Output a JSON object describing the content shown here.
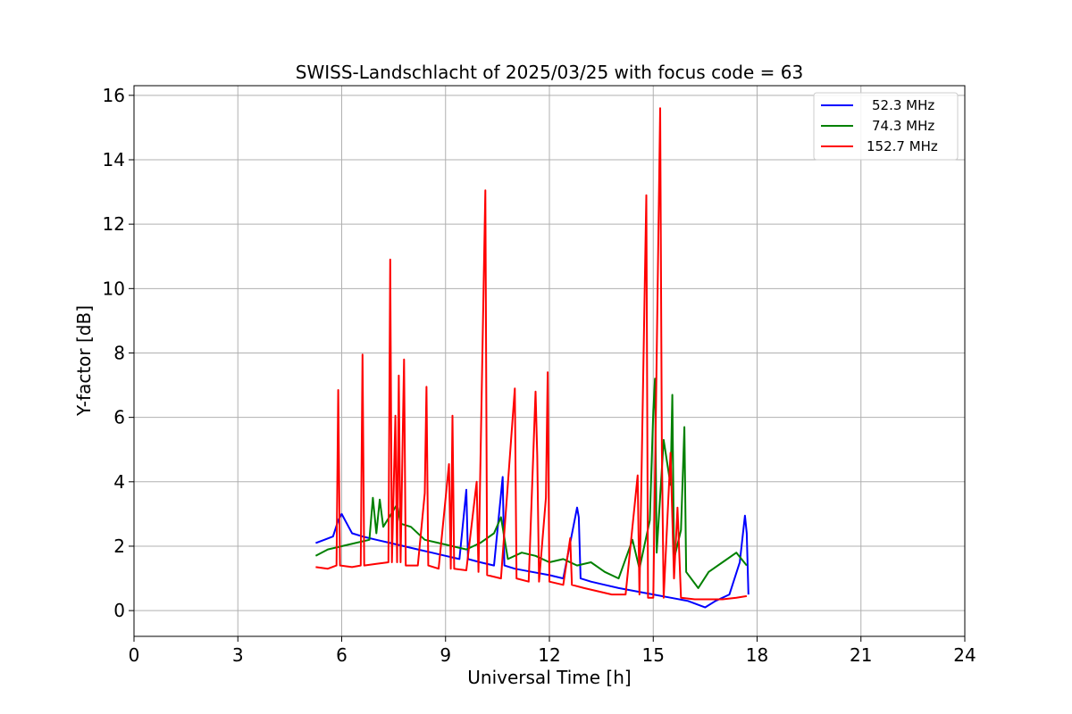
{
  "chart_data": {
    "type": "line",
    "title": "SWISS-Landschlacht of 2025/03/25 with focus code = 63",
    "xlabel": "Universal Time [h]",
    "ylabel": "Y-factor [dB]",
    "xlim": [
      0,
      24
    ],
    "ylim": [
      -0.8,
      16.3
    ],
    "xticks": [
      0,
      3,
      6,
      9,
      12,
      15,
      18,
      21,
      24
    ],
    "yticks": [
      0,
      2,
      4,
      6,
      8,
      10,
      12,
      14,
      16
    ],
    "grid": true,
    "legend_position": "top-right",
    "series": [
      {
        "name": "52.3 MHz",
        "color": "#0000ff",
        "points": [
          [
            5.25,
            2.1
          ],
          [
            5.5,
            2.2
          ],
          [
            5.75,
            2.3
          ],
          [
            5.9,
            2.8
          ],
          [
            6.0,
            3.0
          ],
          [
            6.15,
            2.7
          ],
          [
            6.3,
            2.4
          ],
          [
            6.6,
            2.3
          ],
          [
            7.0,
            2.2
          ],
          [
            7.4,
            2.1
          ],
          [
            7.8,
            2.0
          ],
          [
            8.2,
            1.9
          ],
          [
            8.6,
            1.8
          ],
          [
            9.0,
            1.7
          ],
          [
            9.4,
            1.6
          ],
          [
            9.6,
            3.75
          ],
          [
            9.65,
            1.6
          ],
          [
            10.0,
            1.5
          ],
          [
            10.4,
            1.4
          ],
          [
            10.65,
            4.15
          ],
          [
            10.7,
            1.4
          ],
          [
            11.0,
            1.3
          ],
          [
            11.5,
            1.2
          ],
          [
            12.0,
            1.1
          ],
          [
            12.4,
            1.0
          ],
          [
            12.8,
            3.2
          ],
          [
            12.85,
            2.9
          ],
          [
            12.9,
            1.0
          ],
          [
            13.2,
            0.9
          ],
          [
            13.6,
            0.8
          ],
          [
            14.0,
            0.7
          ],
          [
            14.5,
            0.6
          ],
          [
            15.0,
            0.5
          ],
          [
            15.5,
            0.4
          ],
          [
            16.0,
            0.3
          ],
          [
            16.5,
            0.1
          ],
          [
            16.8,
            0.3
          ],
          [
            17.2,
            0.5
          ],
          [
            17.5,
            1.5
          ],
          [
            17.65,
            2.95
          ],
          [
            17.7,
            2.4
          ],
          [
            17.75,
            0.5
          ]
        ]
      },
      {
        "name": "74.3 MHz",
        "color": "#008000",
        "points": [
          [
            5.25,
            1.7
          ],
          [
            5.6,
            1.9
          ],
          [
            6.0,
            2.0
          ],
          [
            6.4,
            2.1
          ],
          [
            6.8,
            2.2
          ],
          [
            6.9,
            3.5
          ],
          [
            7.0,
            2.4
          ],
          [
            7.1,
            3.45
          ],
          [
            7.2,
            2.6
          ],
          [
            7.6,
            3.3
          ],
          [
            7.7,
            2.7
          ],
          [
            8.0,
            2.6
          ],
          [
            8.4,
            2.2
          ],
          [
            8.8,
            2.1
          ],
          [
            9.2,
            2.0
          ],
          [
            9.6,
            1.9
          ],
          [
            10.0,
            2.1
          ],
          [
            10.4,
            2.4
          ],
          [
            10.6,
            2.9
          ],
          [
            10.8,
            1.6
          ],
          [
            11.2,
            1.8
          ],
          [
            11.6,
            1.7
          ],
          [
            12.0,
            1.5
          ],
          [
            12.4,
            1.6
          ],
          [
            12.8,
            1.4
          ],
          [
            13.2,
            1.5
          ],
          [
            13.6,
            1.2
          ],
          [
            14.0,
            1.0
          ],
          [
            14.4,
            2.2
          ],
          [
            14.6,
            1.3
          ],
          [
            14.9,
            2.8
          ],
          [
            15.0,
            6.2
          ],
          [
            15.05,
            7.2
          ],
          [
            15.1,
            1.8
          ],
          [
            15.3,
            5.3
          ],
          [
            15.5,
            3.9
          ],
          [
            15.55,
            6.7
          ],
          [
            15.6,
            1.6
          ],
          [
            15.8,
            2.5
          ],
          [
            15.9,
            5.7
          ],
          [
            15.95,
            1.2
          ],
          [
            16.3,
            0.7
          ],
          [
            16.6,
            1.2
          ],
          [
            17.0,
            1.5
          ],
          [
            17.4,
            1.8
          ],
          [
            17.7,
            1.4
          ]
        ]
      },
      {
        "name": "152.7 MHz",
        "color": "#ff0000",
        "points": [
          [
            5.25,
            1.35
          ],
          [
            5.6,
            1.3
          ],
          [
            5.85,
            1.4
          ],
          [
            5.9,
            6.85
          ],
          [
            5.95,
            1.4
          ],
          [
            6.3,
            1.35
          ],
          [
            6.55,
            1.4
          ],
          [
            6.6,
            7.95
          ],
          [
            6.65,
            1.4
          ],
          [
            7.0,
            1.45
          ],
          [
            7.35,
            1.5
          ],
          [
            7.4,
            10.9
          ],
          [
            7.45,
            1.5
          ],
          [
            7.55,
            6.05
          ],
          [
            7.6,
            1.5
          ],
          [
            7.65,
            7.3
          ],
          [
            7.7,
            1.5
          ],
          [
            7.8,
            7.8
          ],
          [
            7.85,
            1.4
          ],
          [
            8.2,
            1.4
          ],
          [
            8.4,
            3.65
          ],
          [
            8.45,
            6.95
          ],
          [
            8.5,
            1.4
          ],
          [
            8.8,
            1.3
          ],
          [
            9.1,
            4.55
          ],
          [
            9.15,
            1.3
          ],
          [
            9.2,
            6.05
          ],
          [
            9.25,
            1.3
          ],
          [
            9.6,
            1.25
          ],
          [
            9.9,
            4.0
          ],
          [
            9.95,
            1.2
          ],
          [
            10.15,
            13.05
          ],
          [
            10.2,
            1.1
          ],
          [
            10.6,
            1.0
          ],
          [
            11.0,
            6.9
          ],
          [
            11.05,
            1.0
          ],
          [
            11.4,
            0.9
          ],
          [
            11.6,
            6.8
          ],
          [
            11.65,
            4.8
          ],
          [
            11.7,
            0.9
          ],
          [
            11.9,
            3.5
          ],
          [
            11.95,
            7.4
          ],
          [
            12.0,
            0.9
          ],
          [
            12.4,
            0.8
          ],
          [
            12.6,
            2.25
          ],
          [
            12.65,
            0.8
          ],
          [
            13.0,
            0.7
          ],
          [
            13.4,
            0.6
          ],
          [
            13.8,
            0.5
          ],
          [
            14.2,
            0.5
          ],
          [
            14.55,
            4.2
          ],
          [
            14.6,
            0.5
          ],
          [
            14.8,
            12.9
          ],
          [
            14.85,
            0.4
          ],
          [
            15.0,
            0.4
          ],
          [
            15.2,
            15.6
          ],
          [
            15.25,
            5.0
          ],
          [
            15.3,
            0.4
          ],
          [
            15.5,
            4.9
          ],
          [
            15.6,
            1.0
          ],
          [
            15.7,
            3.2
          ],
          [
            15.8,
            0.4
          ],
          [
            16.2,
            0.35
          ],
          [
            16.6,
            0.35
          ],
          [
            17.0,
            0.35
          ],
          [
            17.4,
            0.4
          ],
          [
            17.7,
            0.45
          ]
        ]
      }
    ]
  }
}
